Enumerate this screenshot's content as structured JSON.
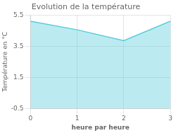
{
  "chart_data": {
    "type": "area",
    "title": "Evolution de la température",
    "xlabel": "heure par heure",
    "ylabel": "Température en °C",
    "x": [
      0,
      1,
      2,
      3
    ],
    "values": [
      5.1,
      4.55,
      3.85,
      5.1
    ],
    "color": "#55ccdd",
    "xlim": [
      0,
      3
    ],
    "ylim": [
      -0.5,
      5.5
    ],
    "xticks": [
      0,
      1,
      2,
      3
    ],
    "yticks": [
      -0.5,
      1.5,
      3.5,
      5.5
    ],
    "grid": true
  }
}
